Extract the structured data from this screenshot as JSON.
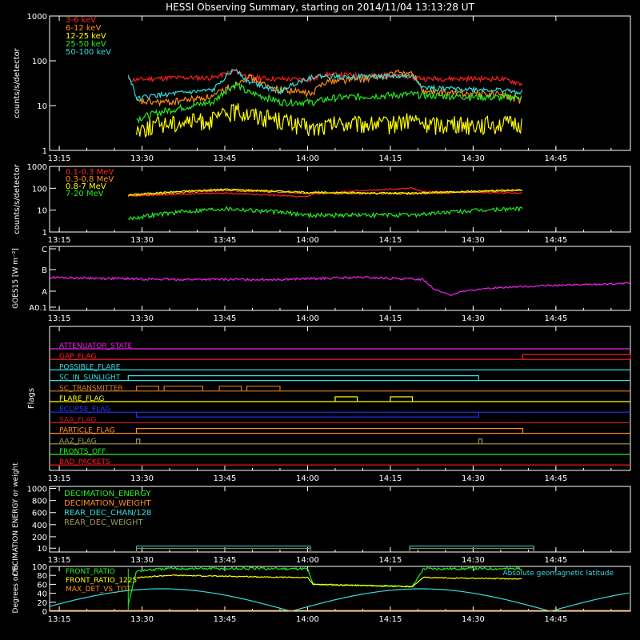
{
  "title": "HESSI Observing Summary, starting on 2014/11/04 13:13:28 UT",
  "x_axis": {
    "tick_labels": [
      "13:15",
      "13:30",
      "13:45",
      "14:00",
      "14:15",
      "14:30",
      "14:45"
    ],
    "tick_minutes": [
      0,
      15,
      30,
      45,
      60,
      75,
      90
    ],
    "range_minutes": [
      -1.75,
      103.5
    ]
  },
  "colors": {
    "red": "#ff2020",
    "orange": "#ff8c1a",
    "yellow": "#ffff00",
    "green": "#22ee22",
    "cyan": "#33dddd",
    "magenta": "#ee22ee",
    "blue": "#2233ff",
    "olive": "#9a9a55",
    "dark_red": "#cc1818",
    "dark_orange": "#dd7a22"
  },
  "chart_data": [
    {
      "type": "line",
      "panel": "xray",
      "ylabel": "counts/s/detector",
      "yscale": "log",
      "ylim": [
        1,
        1000
      ],
      "y_tick_labels": [
        "1",
        "10",
        "100",
        "1000"
      ],
      "y_tick_values": [
        1,
        10,
        100,
        1000
      ],
      "series": [
        {
          "name": "3-6 keV",
          "color": "#ff2020",
          "x": [
            12.5,
            14,
            20,
            28,
            32,
            34,
            38,
            46,
            48,
            60,
            64,
            66,
            80,
            84
          ],
          "y": [
            38,
            38,
            42,
            42,
            60,
            45,
            40,
            38,
            50,
            45,
            45,
            40,
            40,
            30
          ]
        },
        {
          "name": "6-12 keV",
          "color": "#ff8c1a",
          "x": [
            14,
            20,
            28,
            32,
            34,
            38,
            46,
            48,
            56,
            62,
            64,
            66,
            80,
            84
          ],
          "y": [
            12,
            12,
            16,
            30,
            45,
            25,
            18,
            35,
            40,
            55,
            50,
            20,
            18,
            12
          ]
        },
        {
          "name": "12-25 keV",
          "color": "#ffff00",
          "x": [
            14,
            18,
            28,
            32,
            34,
            40,
            46,
            50,
            60,
            64,
            66,
            80,
            84
          ],
          "y": [
            3,
            4,
            5,
            8,
            7,
            5,
            3,
            4,
            4,
            5,
            4,
            4,
            4
          ]
        },
        {
          "name": "25-50 keV",
          "color": "#22ee22",
          "x": [
            14,
            18,
            28,
            32,
            34,
            40,
            46,
            50,
            60,
            64,
            66,
            80,
            84
          ],
          "y": [
            5,
            7,
            12,
            30,
            20,
            12,
            12,
            15,
            17,
            18,
            17,
            15,
            16
          ]
        },
        {
          "name": "50-100 keV",
          "color": "#33dddd",
          "x": [
            12.5,
            14,
            16,
            28,
            32,
            34,
            40,
            46,
            48,
            60,
            64,
            66,
            80,
            84
          ],
          "y": [
            45,
            14,
            16,
            22,
            65,
            35,
            20,
            45,
            45,
            45,
            45,
            25,
            22,
            20
          ]
        }
      ]
    },
    {
      "type": "line",
      "panel": "gamma",
      "ylabel": "counts/s/detector",
      "yscale": "log",
      "ylim": [
        1,
        1000
      ],
      "y_tick_labels": [
        "1",
        "10",
        "100",
        "1000"
      ],
      "y_tick_values": [
        1,
        10,
        100,
        1000
      ],
      "series": [
        {
          "name": "0.1-0.3 MeV",
          "color": "#ff2020",
          "x": [
            12.5,
            30,
            45,
            46,
            64,
            66,
            84
          ],
          "y": [
            45,
            60,
            40,
            55,
            100,
            70,
            60
          ]
        },
        {
          "name": "0.3-0.8 MeV",
          "color": "#ff8c1a",
          "x": [
            12.5,
            30,
            45,
            64,
            84
          ],
          "y": [
            45,
            80,
            60,
            55,
            80
          ]
        },
        {
          "name": "0.8-7 MeV",
          "color": "#ffff00",
          "x": [
            12.5,
            30,
            45,
            64,
            84
          ],
          "y": [
            50,
            90,
            65,
            60,
            85
          ]
        },
        {
          "name": "7-20 MeV",
          "color": "#22ee22",
          "x": [
            12.5,
            30,
            45,
            64,
            84
          ],
          "y": [
            4,
            12,
            6,
            6,
            12
          ]
        }
      ]
    },
    {
      "type": "line",
      "panel": "goes",
      "ylabel": "GOES15 [W m⁻²]",
      "yscale": "log",
      "y_tick_labels": [
        "A0.1",
        "A",
        "B",
        "C"
      ],
      "series": [
        {
          "name": "GOES15",
          "color": "#ee22ee",
          "x": [
            -1.75,
            20,
            40,
            55,
            66,
            68,
            71,
            73,
            80,
            90,
            103.5
          ],
          "y": [
            0.75,
            0.7,
            0.7,
            0.75,
            0.7,
            0.45,
            0.3,
            0.4,
            0.5,
            0.55,
            0.6
          ]
        }
      ]
    },
    {
      "type": "line",
      "panel": "flags",
      "ylabel": "Flags",
      "series": [
        {
          "name": "ATTENUATOR_STATE",
          "color": "#ee22ee"
        },
        {
          "name": "GAP_FLAG",
          "color": "#ff2020"
        },
        {
          "name": "POSSIBLE_FLARE",
          "color": "#33dddd"
        },
        {
          "name": "SC_IN_SUNLIGHT",
          "color": "#33dddd"
        },
        {
          "name": "SC_TRANSMITTER",
          "color": "#dd7a22"
        },
        {
          "name": "FLARE_FLAG",
          "color": "#ffff00"
        },
        {
          "name": "ECLIPSE_FLAG",
          "color": "#2233ff"
        },
        {
          "name": "SAA_FLAG",
          "color": "#cc1818"
        },
        {
          "name": "PARTICLE_FLAG",
          "color": "#ff8c1a"
        },
        {
          "name": "AAZ_FLAG",
          "color": "#9a9a55"
        },
        {
          "name": "FRONTS_OFF",
          "color": "#22ee22"
        },
        {
          "name": "BAD_PACKETS",
          "color": "#ff2020"
        }
      ]
    },
    {
      "type": "line",
      "panel": "decimation",
      "ylabel": "DECIMATION ENERGY or weight",
      "ylim": [
        0,
        1000
      ],
      "y_tick_labels": [
        "10",
        "200",
        "400",
        "600",
        "800",
        "1000"
      ],
      "y_tick_values": [
        10,
        200,
        400,
        600,
        800,
        1000
      ],
      "series": [
        {
          "name": "DECIMATION_ENERGY",
          "color": "#22ee22"
        },
        {
          "name": "DECIMATION_WEIGHT",
          "color": "#ff8c1a"
        },
        {
          "name": "REAR_DEC_CHAN/128",
          "color": "#33dddd"
        },
        {
          "name": "REAR_DEC_WEIGHT",
          "color": "#9a9a55"
        }
      ]
    },
    {
      "type": "line",
      "panel": "ratio",
      "ylabel": "Degrees or %",
      "ylim": [
        0,
        100
      ],
      "y_tick_labels": [
        "0",
        "20",
        "40",
        "60",
        "80",
        "100"
      ],
      "y_tick_values": [
        0,
        20,
        40,
        60,
        80,
        100
      ],
      "annotation": "Absolute geomagnetic latitude",
      "series": [
        {
          "name": "FRONT_RATIO",
          "color": "#22ee22",
          "x": [
            12.5,
            14,
            20,
            45,
            46,
            64,
            66,
            84
          ],
          "y": [
            15,
            90,
            95,
            95,
            60,
            55,
            95,
            95
          ]
        },
        {
          "name": "FRONT_RATIO_1225",
          "color": "#ffff00",
          "x": [
            14,
            20,
            45,
            46,
            64,
            66,
            84
          ],
          "y": [
            75,
            80,
            75,
            60,
            55,
            75,
            72
          ]
        },
        {
          "name": "MAX_DET_VS_TOT",
          "color": "#ff8c1a"
        },
        {
          "name": "Absolute geomagnetic latitude",
          "color": "#33dddd"
        }
      ]
    }
  ]
}
